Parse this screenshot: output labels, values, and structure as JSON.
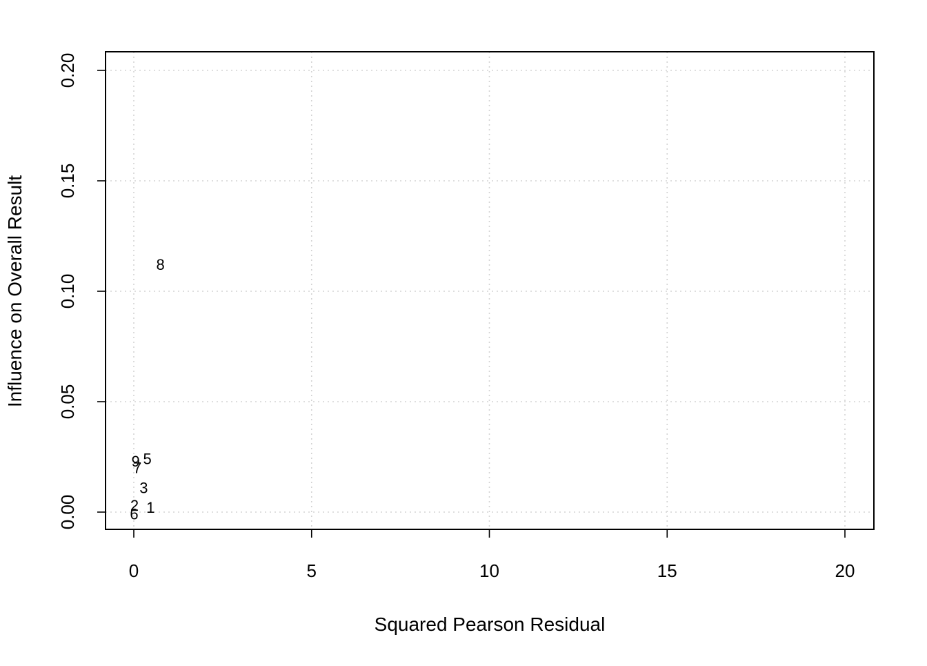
{
  "chart_data": {
    "type": "scatter",
    "title": "",
    "xlabel": "Squared Pearson Residual",
    "ylabel": "Influence on Overall Result",
    "xlim": [
      0,
      20
    ],
    "ylim": [
      0,
      0.2
    ],
    "x_ticks": [
      0,
      5,
      10,
      15,
      20
    ],
    "y_ticks": [
      0,
      0.05,
      0.1,
      0.15,
      0.2
    ],
    "x_tick_labels": [
      "0",
      "5",
      "10",
      "15",
      "20"
    ],
    "y_tick_labels": [
      "0.00",
      "0.05",
      "0.10",
      "0.15",
      "0.20"
    ],
    "grid": true,
    "marker": "text-label",
    "points": [
      {
        "label": "1",
        "x": 0.47,
        "y": 0.002
      },
      {
        "label": "2",
        "x": 0.02,
        "y": 0.003
      },
      {
        "label": "3",
        "x": 0.28,
        "y": 0.011
      },
      {
        "label": "5",
        "x": 0.38,
        "y": 0.024
      },
      {
        "label": "6",
        "x": 0.01,
        "y": -0.001
      },
      {
        "label": "7",
        "x": 0.1,
        "y": 0.02
      },
      {
        "label": "8",
        "x": 0.75,
        "y": 0.112
      },
      {
        "label": "9",
        "x": 0.05,
        "y": 0.023
      }
    ]
  }
}
